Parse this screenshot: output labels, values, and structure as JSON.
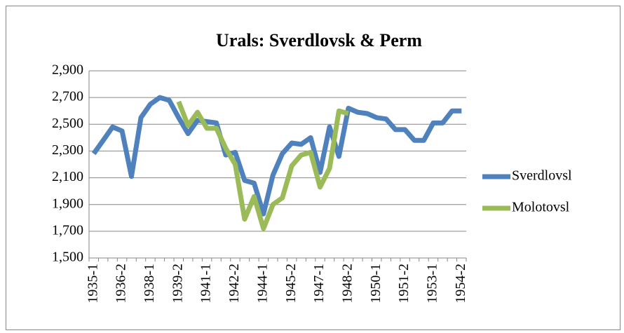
{
  "chart_data": {
    "type": "line",
    "title": "Urals: Sverdlovsk & Perm",
    "categories": [
      "1935-1",
      null,
      null,
      "1936-2",
      null,
      null,
      "1938-1",
      null,
      null,
      "1939-2",
      null,
      null,
      "1941-1",
      null,
      null,
      "1942-2",
      null,
      null,
      "1944-1",
      null,
      null,
      "1945-2",
      null,
      null,
      "1947-1",
      null,
      null,
      "1948-2",
      null,
      null,
      "1950-1",
      null,
      null,
      "1951-2",
      null,
      null,
      "1953-1",
      null,
      null,
      "1954-2"
    ],
    "series": [
      {
        "name": "Sverdlovsl",
        "color": "#4f81bd",
        "values": [
          2280,
          2380,
          2480,
          2450,
          2110,
          2550,
          2650,
          2700,
          2680,
          2550,
          2430,
          2530,
          2520,
          2510,
          2270,
          2290,
          2080,
          2060,
          1830,
          2120,
          2280,
          2360,
          2350,
          2400,
          2140,
          2480,
          2260,
          2620,
          2590,
          2580,
          2550,
          2540,
          2460,
          2460,
          2380,
          2380,
          2510,
          2510,
          2600,
          2600
        ]
      },
      {
        "name": "Molotovsl",
        "color": "#9bbb59",
        "values": [
          null,
          null,
          null,
          null,
          null,
          null,
          null,
          null,
          null,
          2670,
          2490,
          2590,
          2470,
          2470,
          2320,
          2200,
          1790,
          1960,
          1720,
          1900,
          1950,
          2190,
          2270,
          2290,
          2030,
          2170,
          2600,
          2580,
          null,
          null,
          null,
          null,
          null,
          null,
          null,
          null,
          null,
          null,
          null,
          null
        ]
      }
    ],
    "ylim": [
      1500,
      2900
    ],
    "yticks": [
      {
        "value": 1500,
        "label": "1,500"
      },
      {
        "value": 1700,
        "label": "1,700"
      },
      {
        "value": 1900,
        "label": "1,900"
      },
      {
        "value": 2100,
        "label": "2,100"
      },
      {
        "value": 2300,
        "label": "2,300"
      },
      {
        "value": 2500,
        "label": "2,500"
      },
      {
        "value": 2700,
        "label": "2,700"
      },
      {
        "value": 2900,
        "label": "2,900"
      }
    ],
    "grid": true,
    "legend": "right"
  }
}
